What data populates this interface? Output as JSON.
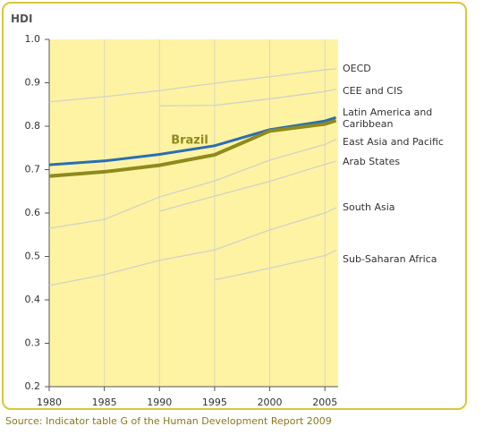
{
  "chart_data": {
    "type": "line",
    "title": "HDI",
    "x": [
      1980,
      1985,
      1990,
      1995,
      2000,
      2005,
      2006
    ],
    "xlim": [
      1980,
      2006.2
    ],
    "xticks": [
      1980,
      1985,
      1990,
      1995,
      2000,
      2005
    ],
    "ylim": [
      0.2,
      1.0
    ],
    "yticks": [
      0.2,
      0.3,
      0.4,
      0.5,
      0.6,
      0.7,
      0.8,
      0.9,
      {
        "value": 1.0,
        "label": "1.0"
      }
    ],
    "grid": "x",
    "series": [
      {
        "name": "OECD",
        "color": "#d2d2c8",
        "values": [
          0.856,
          0.868,
          0.882,
          0.899,
          0.914,
          0.93,
          0.932
        ]
      },
      {
        "name": "CEE and CIS",
        "color": "#d2d2c8",
        "values": [
          null,
          null,
          0.847,
          0.848,
          0.863,
          0.88,
          0.885
        ]
      },
      {
        "name": "Latin America and Caribbean",
        "color": "#2a6db5",
        "values": [
          0.711,
          0.72,
          0.735,
          0.755,
          0.792,
          0.812,
          0.82
        ]
      },
      {
        "name": "East Asia and Pacific",
        "color": "#d2d2c8",
        "values": [
          0.565,
          0.585,
          0.637,
          0.674,
          0.722,
          0.758,
          0.77
        ]
      },
      {
        "name": "Arab States",
        "color": "#d2d2c8",
        "values": [
          null,
          null,
          0.604,
          0.639,
          0.673,
          0.712,
          0.719
        ]
      },
      {
        "name": "South Asia",
        "color": "#d2d2c8",
        "values": [
          0.433,
          0.458,
          0.491,
          0.515,
          0.561,
          0.6,
          0.612
        ]
      },
      {
        "name": "Sub-Saharan Africa",
        "color": "#d2d2c8",
        "values": [
          null,
          null,
          null,
          0.446,
          0.473,
          0.502,
          0.514
        ]
      },
      {
        "name": "Brazil",
        "color": "#8f8a1c",
        "values": [
          0.685,
          0.695,
          0.71,
          0.734,
          0.789,
          0.805,
          0.813
        ]
      }
    ],
    "source": "Source: Indicator table G of the Human Development Report 2009"
  }
}
